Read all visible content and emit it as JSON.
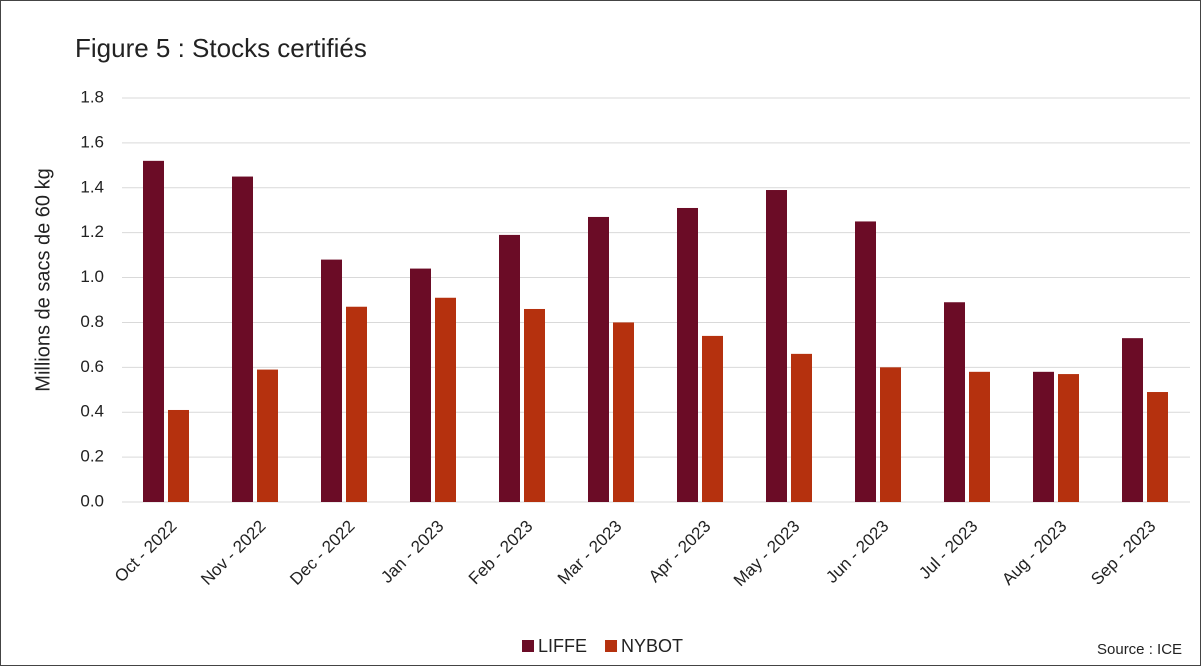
{
  "chart_data": {
    "type": "bar",
    "title": "Figure 5 : Stocks certifiés",
    "y_label": "Millions de sacs de 60 kg",
    "source": "Source : ICE",
    "categories": [
      "Oct - 2022",
      "Nov - 2022",
      "Dec - 2022",
      "Jan - 2023",
      "Feb - 2023",
      "Mar - 2023",
      "Apr - 2023",
      "May - 2023",
      "Jun - 2023",
      "Jul - 2023",
      "Aug - 2023",
      "Sep - 2023"
    ],
    "series": [
      {
        "name": "LIFFE",
        "color": "#6b0c26",
        "values": [
          1.52,
          1.45,
          1.08,
          1.04,
          1.19,
          1.27,
          1.31,
          1.39,
          1.25,
          0.89,
          0.58,
          0.73
        ]
      },
      {
        "name": "NYBOT",
        "color": "#b5310e",
        "values": [
          0.41,
          0.59,
          0.87,
          0.91,
          0.86,
          0.8,
          0.74,
          0.66,
          0.6,
          0.58,
          0.57,
          0.49
        ]
      }
    ],
    "ylim": [
      0,
      1.8
    ],
    "yticks": [
      {
        "value": 0,
        "label": "0.0"
      },
      0.2,
      0.4,
      0.6,
      0.8,
      {
        "value": 1,
        "label": "1.0"
      },
      1.2,
      1.4,
      1.6,
      1.8
    ],
    "grid": true,
    "legend": "bottom"
  }
}
